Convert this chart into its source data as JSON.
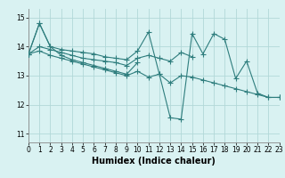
{
  "xlabel": "Humidex (Indice chaleur)",
  "xlim": [
    0,
    23
  ],
  "ylim": [
    10.7,
    15.3
  ],
  "xticks": [
    0,
    1,
    2,
    3,
    4,
    5,
    6,
    7,
    8,
    9,
    10,
    11,
    12,
    13,
    14,
    15,
    16,
    17,
    18,
    19,
    20,
    21,
    22,
    23
  ],
  "yticks": [
    11,
    12,
    13,
    14,
    15
  ],
  "background_color": "#d9f2f2",
  "grid_color": "#b2d8d8",
  "line_color": "#2e7d7d",
  "series": [
    {
      "x": [
        0,
        1,
        2,
        3,
        4,
        5,
        6,
        7,
        8,
        9,
        10,
        11,
        12,
        13,
        14,
        15,
        16,
        17,
        18,
        19,
        20,
        21,
        22,
        23
      ],
      "y": [
        13.75,
        14.8,
        14.0,
        13.9,
        13.85,
        13.8,
        13.75,
        13.65,
        13.6,
        13.55,
        13.85,
        14.5,
        13.05,
        11.55,
        11.5,
        14.45,
        13.75,
        14.45,
        14.25,
        12.9,
        13.5,
        12.4,
        12.25,
        12.25
      ]
    },
    {
      "x": [
        0,
        1,
        2,
        3,
        4,
        5,
        6,
        7,
        8,
        9,
        10
      ],
      "y": [
        13.75,
        14.8,
        14.0,
        13.7,
        13.55,
        13.45,
        13.35,
        13.25,
        13.15,
        13.05,
        13.45
      ]
    },
    {
      "x": [
        0,
        1,
        2,
        3,
        4,
        5,
        6,
        7,
        8,
        9,
        10,
        11,
        12,
        13,
        14,
        15
      ],
      "y": [
        13.75,
        14.0,
        13.9,
        13.8,
        13.7,
        13.6,
        13.55,
        13.5,
        13.45,
        13.35,
        13.6,
        13.7,
        13.6,
        13.5,
        13.8,
        13.65
      ]
    },
    {
      "x": [
        0,
        1,
        2,
        3,
        4,
        5,
        6,
        7,
        8,
        9,
        10,
        11,
        12,
        13,
        14,
        15,
        16,
        17,
        18,
        19,
        20,
        21,
        22,
        23
      ],
      "y": [
        13.75,
        13.85,
        13.7,
        13.6,
        13.5,
        13.4,
        13.3,
        13.2,
        13.1,
        13.0,
        13.15,
        12.95,
        13.05,
        12.75,
        13.0,
        12.95,
        12.85,
        12.75,
        12.65,
        12.55,
        12.45,
        12.35,
        12.25,
        12.25
      ]
    }
  ],
  "marker": "+",
  "markersize": 4,
  "linewidth": 0.8,
  "tick_fontsize": 5.5,
  "xlabel_fontsize": 7
}
